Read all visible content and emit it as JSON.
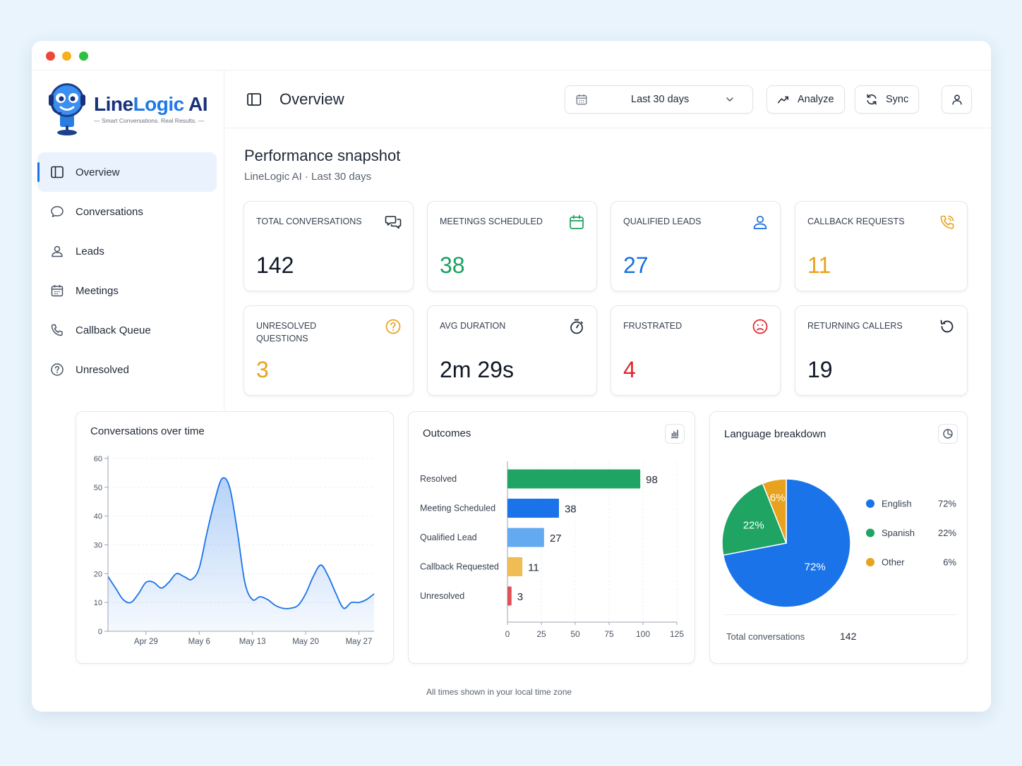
{
  "window": {
    "controls": [
      "close",
      "minimize",
      "maximize"
    ]
  },
  "brand": {
    "name_part1": "Line",
    "name_part2": "Logic",
    "name_part3": " AI",
    "tagline": "Smart Conversations. Real Results."
  },
  "sidebar": {
    "items": [
      {
        "label": "Overview",
        "icon": "panel-icon",
        "active": true
      },
      {
        "label": "Conversations",
        "icon": "chat-bubble-icon"
      },
      {
        "label": "Leads",
        "icon": "user-icon"
      },
      {
        "label": "Meetings",
        "icon": "calendar-icon"
      },
      {
        "label": "Callback Queue",
        "icon": "phone-icon"
      },
      {
        "label": "Unresolved",
        "icon": "question-icon"
      }
    ]
  },
  "header": {
    "title": "Overview",
    "date_range": "Last 30 days",
    "analyze_label": "Analyze",
    "sync_label": "Sync"
  },
  "snapshot": {
    "title": "Performance snapshot",
    "subtitle": "LineLogic AI · Last 30 days"
  },
  "kpis": [
    {
      "label": "Total Conversations",
      "value": "142",
      "color": "#111827",
      "icon": "chat-bubbles-icon"
    },
    {
      "label": "Meetings Scheduled",
      "value": "38",
      "color": "#1aa160",
      "icon": "calendar-icon"
    },
    {
      "label": "Qualified Leads",
      "value": "27",
      "color": "#1a6fe0",
      "icon": "user-icon"
    },
    {
      "label": "Callback Requests",
      "value": "11",
      "color": "#e8a21d",
      "icon": "phone-ring-icon"
    },
    {
      "label": "Unresolved Questions",
      "value": "3",
      "color": "#e8a21d",
      "icon": "question-icon"
    },
    {
      "label": "Avg Duration",
      "value": "2m 29s",
      "color": "#111827",
      "icon": "stopwatch-icon"
    },
    {
      "label": "Frustrated",
      "value": "4",
      "color": "#e0252e",
      "icon": "sad-face-icon"
    },
    {
      "label": "Returning Callers",
      "value": "19",
      "color": "#111827",
      "icon": "refresh-icon"
    }
  ],
  "conversations_card": {
    "title": "Conversations over time"
  },
  "outcomes_card": {
    "title": "Outcomes"
  },
  "language_card": {
    "title": "Language breakdown",
    "total_label": "Total conversations",
    "total_value": "142"
  },
  "footer": {
    "note": "All times shown in your local time zone"
  },
  "chart_data": [
    {
      "type": "area",
      "title": "Conversations over time",
      "ylim": [
        0,
        60
      ],
      "y_ticks": [
        0,
        10,
        20,
        30,
        40,
        50,
        60
      ],
      "x_ticks": [
        "Apr 29",
        "May 6",
        "May 13",
        "May 20",
        "May 27"
      ],
      "x": [
        "Apr 24",
        "Apr 25",
        "Apr 26",
        "Apr 27",
        "Apr 28",
        "Apr 29",
        "Apr 30",
        "May 1",
        "May 2",
        "May 3",
        "May 4",
        "May 5",
        "May 6",
        "May 7",
        "May 8",
        "May 9",
        "May 10",
        "May 11",
        "May 12",
        "May 13",
        "May 14",
        "May 15",
        "May 16",
        "May 17",
        "May 18",
        "May 19",
        "May 20",
        "May 21",
        "May 22",
        "May 23",
        "May 24",
        "May 25",
        "May 26",
        "May 27",
        "May 28",
        "May 29"
      ],
      "values": [
        19,
        15,
        11,
        10,
        13,
        17,
        17,
        15,
        17,
        20,
        19,
        18,
        22,
        34,
        45,
        53,
        50,
        35,
        17,
        11,
        12,
        11,
        9,
        8,
        8,
        9,
        13,
        19,
        23,
        19,
        13,
        8,
        10,
        10,
        11,
        13
      ],
      "color": "#1a73e8",
      "grid": true
    },
    {
      "type": "bar",
      "orientation": "horizontal",
      "title": "Outcomes",
      "categories": [
        "Resolved",
        "Meeting Scheduled",
        "Qualified Lead",
        "Callback Requested",
        "Unresolved"
      ],
      "values": [
        98,
        38,
        27,
        11,
        3
      ],
      "colors": [
        "#1fa463",
        "#1a73e8",
        "#64aaf0",
        "#f0bc54",
        "#e05257"
      ],
      "xlim": [
        0,
        125
      ],
      "x_ticks": [
        0,
        25,
        50,
        75,
        100,
        125
      ],
      "grid": true
    },
    {
      "type": "pie",
      "title": "Language breakdown",
      "categories": [
        "English",
        "Spanish",
        "Other"
      ],
      "values": [
        72,
        22,
        6
      ],
      "labels": [
        "72%",
        "22%",
        "6%"
      ],
      "colors": [
        "#1a73e8",
        "#1fa463",
        "#e8a21d"
      ],
      "legend": "right"
    }
  ]
}
